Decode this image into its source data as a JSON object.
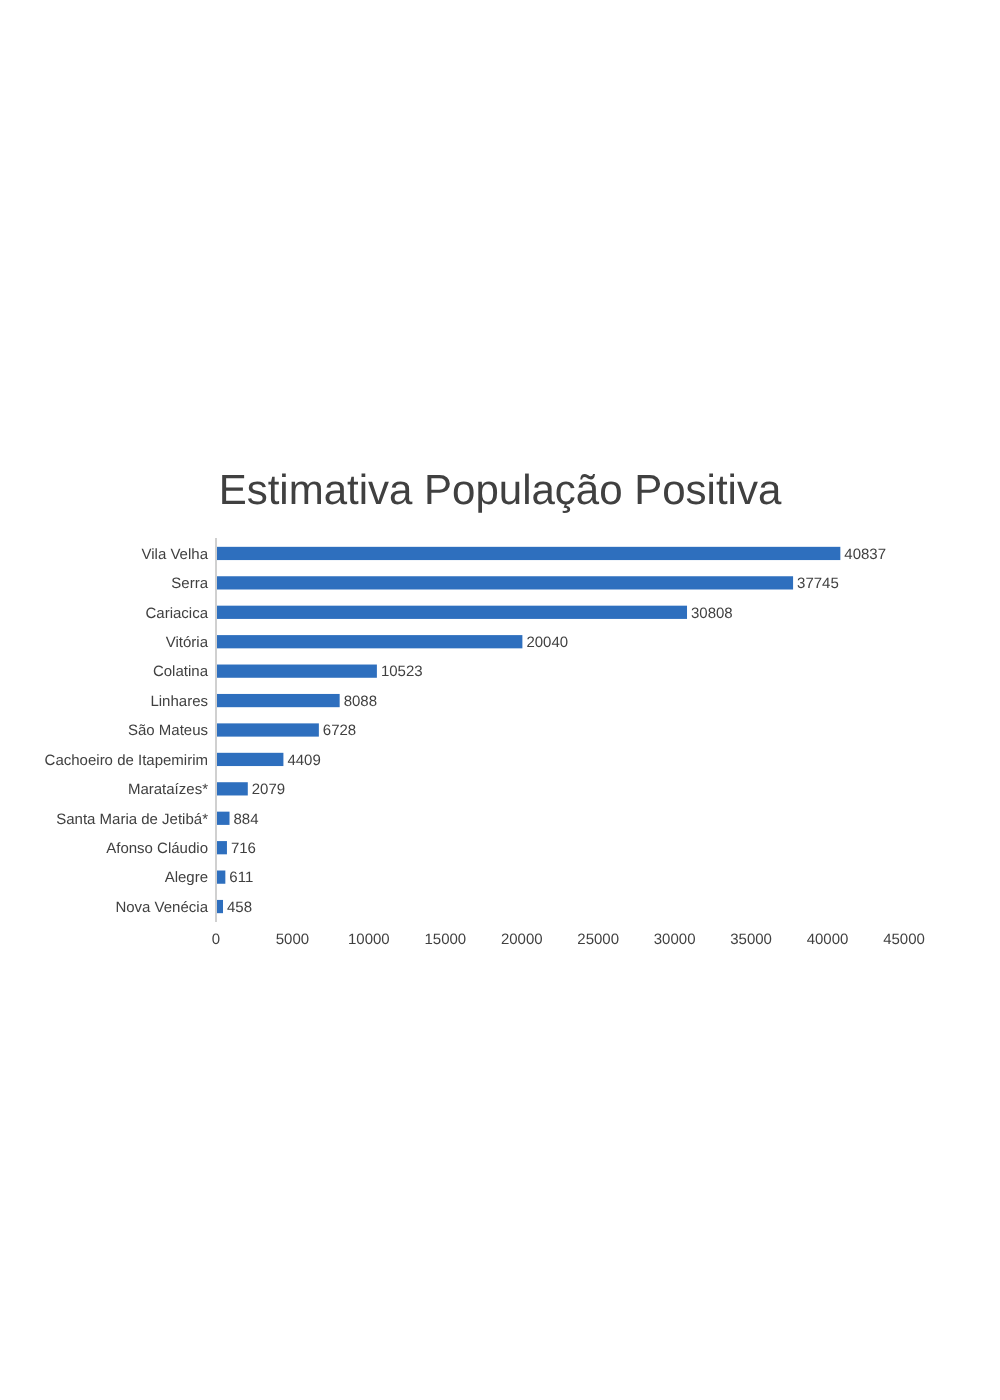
{
  "chart_data": {
    "type": "bar",
    "orientation": "horizontal",
    "title": "Estimativa População Positiva",
    "categories": [
      "Vila Velha",
      "Serra",
      "Cariacica",
      "Vitória",
      "Colatina",
      "Linhares",
      "São Mateus",
      "Cachoeiro de Itapemirim",
      "Marataízes*",
      "Santa Maria de Jetibá*",
      "Afonso Cláudio",
      "Alegre",
      "Nova Venécia"
    ],
    "values": [
      40837,
      37745,
      30808,
      20040,
      10523,
      8088,
      6728,
      4409,
      2079,
      884,
      716,
      611,
      458
    ],
    "color": "#2e6fbe",
    "xlim": [
      0,
      45000
    ],
    "xticks": [
      0,
      5000,
      10000,
      15000,
      20000,
      25000,
      30000,
      35000,
      40000,
      45000
    ],
    "grid": false,
    "data_labels": true
  }
}
